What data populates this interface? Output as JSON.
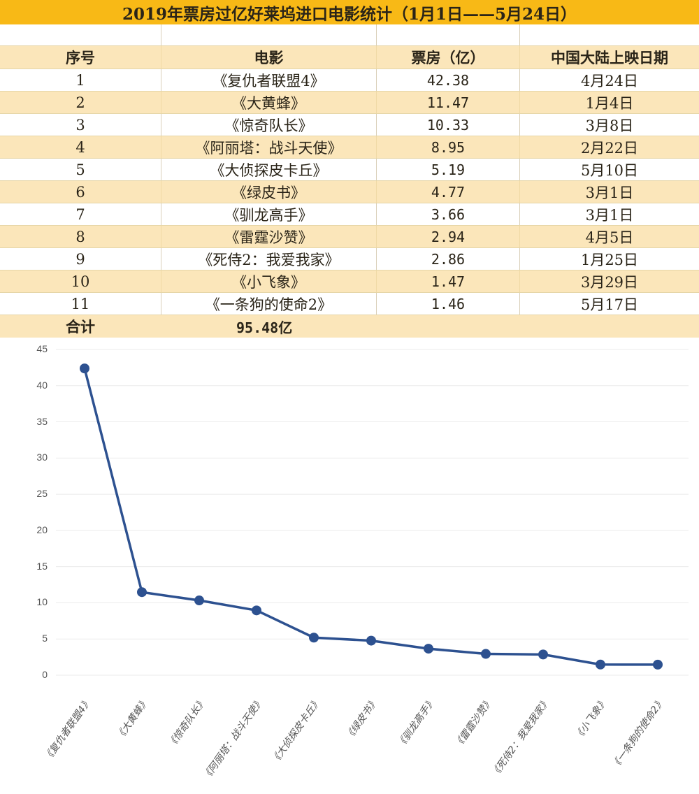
{
  "title": "2019年票房过亿好莱坞进口电影统计（1月1日——5月24日）",
  "table": {
    "headers": [
      "序号",
      "电影",
      "票房（亿）",
      "中国大陆上映日期"
    ],
    "rows": [
      {
        "rank": "1",
        "movie": "《复仇者联盟4》",
        "box_office": "42.38",
        "release_date": "4月24日"
      },
      {
        "rank": "2",
        "movie": "《大黄蜂》",
        "box_office": "11.47",
        "release_date": "1月4日"
      },
      {
        "rank": "3",
        "movie": "《惊奇队长》",
        "box_office": "10.33",
        "release_date": "3月8日"
      },
      {
        "rank": "4",
        "movie": "《阿丽塔：战斗天使》",
        "box_office": "8.95",
        "release_date": "2月22日"
      },
      {
        "rank": "5",
        "movie": "《大侦探皮卡丘》",
        "box_office": "5.19",
        "release_date": "5月10日"
      },
      {
        "rank": "6",
        "movie": "《绿皮书》",
        "box_office": "4.77",
        "release_date": "3月1日"
      },
      {
        "rank": "7",
        "movie": "《驯龙高手》",
        "box_office": "3.66",
        "release_date": "3月1日"
      },
      {
        "rank": "8",
        "movie": "《雷霆沙赞》",
        "box_office": "2.94",
        "release_date": "4月5日"
      },
      {
        "rank": "9",
        "movie": "《死侍2：我爱我家》",
        "box_office": "2.86",
        "release_date": "1月25日"
      },
      {
        "rank": "10",
        "movie": "《小飞象》",
        "box_office": "1.47",
        "release_date": "3月29日"
      },
      {
        "rank": "11",
        "movie": "《一条狗的使命2》",
        "box_office": "1.46",
        "release_date": "5月17日"
      }
    ],
    "total_label": "合计",
    "total_value": "95.48亿"
  },
  "colors": {
    "title_bg": "#f8b916",
    "stripe_bg": "#fbe6ba",
    "line": "#2d5190",
    "grid": "#ebebeb"
  },
  "chart_data": {
    "type": "line",
    "title": "",
    "xlabel": "",
    "ylabel": "",
    "categories": [
      "《复仇者联盟4》",
      "《大黄蜂》",
      "《惊奇队长》",
      "《阿丽塔：战斗天使》",
      "《大侦探皮卡丘》",
      "《绿皮书》",
      "《驯龙高手》",
      "《雷霆沙赞》",
      "《死侍2：我爱我家》",
      "《小飞象》",
      "《一条狗的使命2》"
    ],
    "series": [
      {
        "name": "票房（亿）",
        "values": [
          42.38,
          11.47,
          10.33,
          8.95,
          5.19,
          4.77,
          3.66,
          2.94,
          2.86,
          1.47,
          1.46
        ]
      }
    ],
    "ylim": [
      0,
      45
    ],
    "yticks": [
      "0",
      "5",
      "10",
      "15",
      "20",
      "25",
      "30",
      "35",
      "40",
      "45"
    ],
    "grid": true,
    "legend": "none",
    "markers": true
  }
}
